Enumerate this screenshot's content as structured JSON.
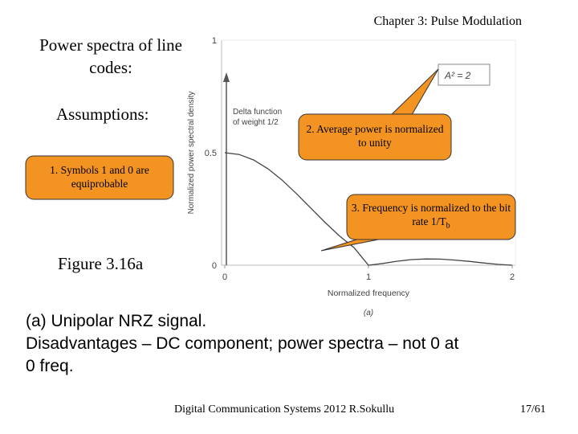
{
  "header": "Chapter 3: Pulse Modulation",
  "title": "Power spectra of line codes:",
  "assumptions_label": "Assumptions:",
  "callouts": {
    "symbols": "1. Symbols 1 and 0 are equiprobable",
    "power": "2. Average power is normalized to unity",
    "frequency": "3. Frequency is normalized to the bit rate 1/T",
    "frequency_sub": "b"
  },
  "figure_label": "Figure 3.16a",
  "caption_lines": [
    "(a) Unipolar NRZ signal.",
    "Disadvantages – DC component; power spectra – not 0 at",
    "0 freq."
  ],
  "footer": "Digital Communication Systems 2012 R.Sokullu",
  "page_number": "17/61",
  "chart_data": {
    "type": "line",
    "x": [
      0,
      0.1,
      0.2,
      0.3,
      0.4,
      0.5,
      0.6,
      0.7,
      0.8,
      0.9,
      1.0,
      1.1,
      1.2,
      1.3,
      1.4,
      1.5,
      1.6,
      1.7,
      1.8,
      1.9,
      2.0
    ],
    "series": [
      {
        "values": [
          0.5,
          0.492,
          0.468,
          0.429,
          0.378,
          0.317,
          0.253,
          0.189,
          0.129,
          0.078,
          0.0,
          0.008,
          0.018,
          0.025,
          0.028,
          0.027,
          0.023,
          0.017,
          0.01,
          0.004,
          0.0
        ]
      }
    ],
    "xlabel": "Normalized frequency",
    "ylabel": "Normalized power spectral density",
    "xticks": [
      "0",
      "1",
      "2"
    ],
    "yticks": [
      "0",
      "0.5",
      "1"
    ],
    "xlim": [
      0,
      2
    ],
    "ylim": [
      0,
      1
    ],
    "delta_label": "Delta function of weight 1/2",
    "formula": "A² = 2",
    "sublabel": "(a)"
  }
}
